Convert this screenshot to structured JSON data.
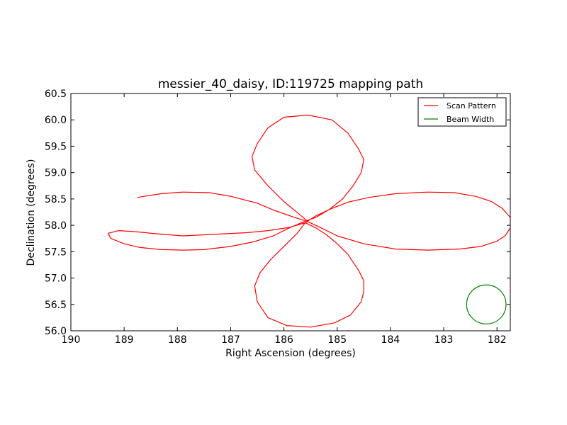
{
  "chart_data": {
    "type": "line",
    "title": "messier_40_daisy, ID:119725 mapping path",
    "xlabel": "Right Ascension (degrees)",
    "ylabel": "Declination (degrees)",
    "xlim": [
      190,
      181.75
    ],
    "ylim": [
      56.0,
      60.5
    ],
    "x_reversed": true,
    "xticks": [
      190,
      189,
      188,
      187,
      186,
      185,
      184,
      183,
      182
    ],
    "xtick_labels": [
      "190",
      "189",
      "188",
      "187",
      "186",
      "185",
      "184",
      "183",
      "182"
    ],
    "yticks": [
      56.0,
      56.5,
      57.0,
      57.5,
      58.0,
      58.5,
      59.0,
      59.5,
      60.0,
      60.5
    ],
    "ytick_labels": [
      "56.0",
      "56.5",
      "57.0",
      "57.5",
      "58.0",
      "58.5",
      "59.0",
      "59.5",
      "60.0",
      "60.5"
    ],
    "grid": false,
    "legend_position": "top-right",
    "series": [
      {
        "name": "Scan Pattern",
        "color": "#ff0000",
        "x": [
          188.75,
          188.3,
          187.9,
          187.4,
          187.0,
          186.5,
          186.2,
          185.8,
          185.55,
          185.7,
          186.0,
          186.3,
          186.55,
          186.6,
          186.5,
          186.3,
          186.0,
          185.55,
          185.1,
          184.8,
          184.6,
          184.5,
          184.55,
          184.7,
          184.9,
          185.15,
          185.4,
          185.6,
          185.9,
          186.2,
          186.6,
          187.0,
          187.5,
          187.9,
          188.3,
          188.7,
          189.0,
          189.25,
          189.3,
          189.1,
          188.8,
          188.4,
          187.9,
          187.5,
          187.1,
          186.7,
          186.3,
          185.9,
          185.6,
          185.4,
          185.2,
          185.0,
          184.8,
          184.6,
          184.5,
          184.5,
          184.55,
          184.75,
          185.05,
          185.5,
          185.95,
          186.3,
          186.5,
          186.55,
          186.45,
          186.25,
          186.0,
          185.75,
          185.6,
          185.4,
          185.1,
          184.8,
          184.4,
          183.9,
          183.3,
          182.8,
          182.4,
          182.1,
          181.9,
          181.75,
          181.75,
          181.85,
          182.0,
          182.3,
          182.7,
          183.3,
          183.9,
          184.5,
          185.0,
          185.3,
          185.55
        ],
        "y": [
          58.53,
          58.6,
          58.63,
          58.62,
          58.55,
          58.42,
          58.29,
          58.15,
          58.07,
          58.2,
          58.45,
          58.75,
          59.05,
          59.3,
          59.55,
          59.85,
          60.05,
          60.09,
          60.0,
          59.75,
          59.45,
          59.25,
          59.0,
          58.75,
          58.5,
          58.3,
          58.15,
          58.08,
          57.95,
          57.8,
          57.68,
          57.6,
          57.54,
          57.53,
          57.54,
          57.58,
          57.65,
          57.75,
          57.85,
          57.9,
          57.88,
          57.84,
          57.8,
          57.82,
          57.84,
          57.86,
          57.9,
          57.96,
          58.05,
          57.95,
          57.82,
          57.65,
          57.45,
          57.15,
          56.95,
          56.75,
          56.55,
          56.3,
          56.15,
          56.07,
          56.1,
          56.25,
          56.55,
          56.85,
          57.1,
          57.35,
          57.6,
          57.85,
          58.05,
          58.18,
          58.32,
          58.44,
          58.53,
          58.6,
          58.63,
          58.62,
          58.55,
          58.45,
          58.32,
          58.15,
          57.95,
          57.8,
          57.7,
          57.6,
          57.55,
          57.53,
          57.55,
          57.65,
          57.8,
          57.95,
          58.07
        ]
      },
      {
        "name": "Beam Width",
        "color": "#008000",
        "circle": {
          "cx": 182.2,
          "cy": 56.5,
          "r": 0.37
        }
      }
    ]
  }
}
